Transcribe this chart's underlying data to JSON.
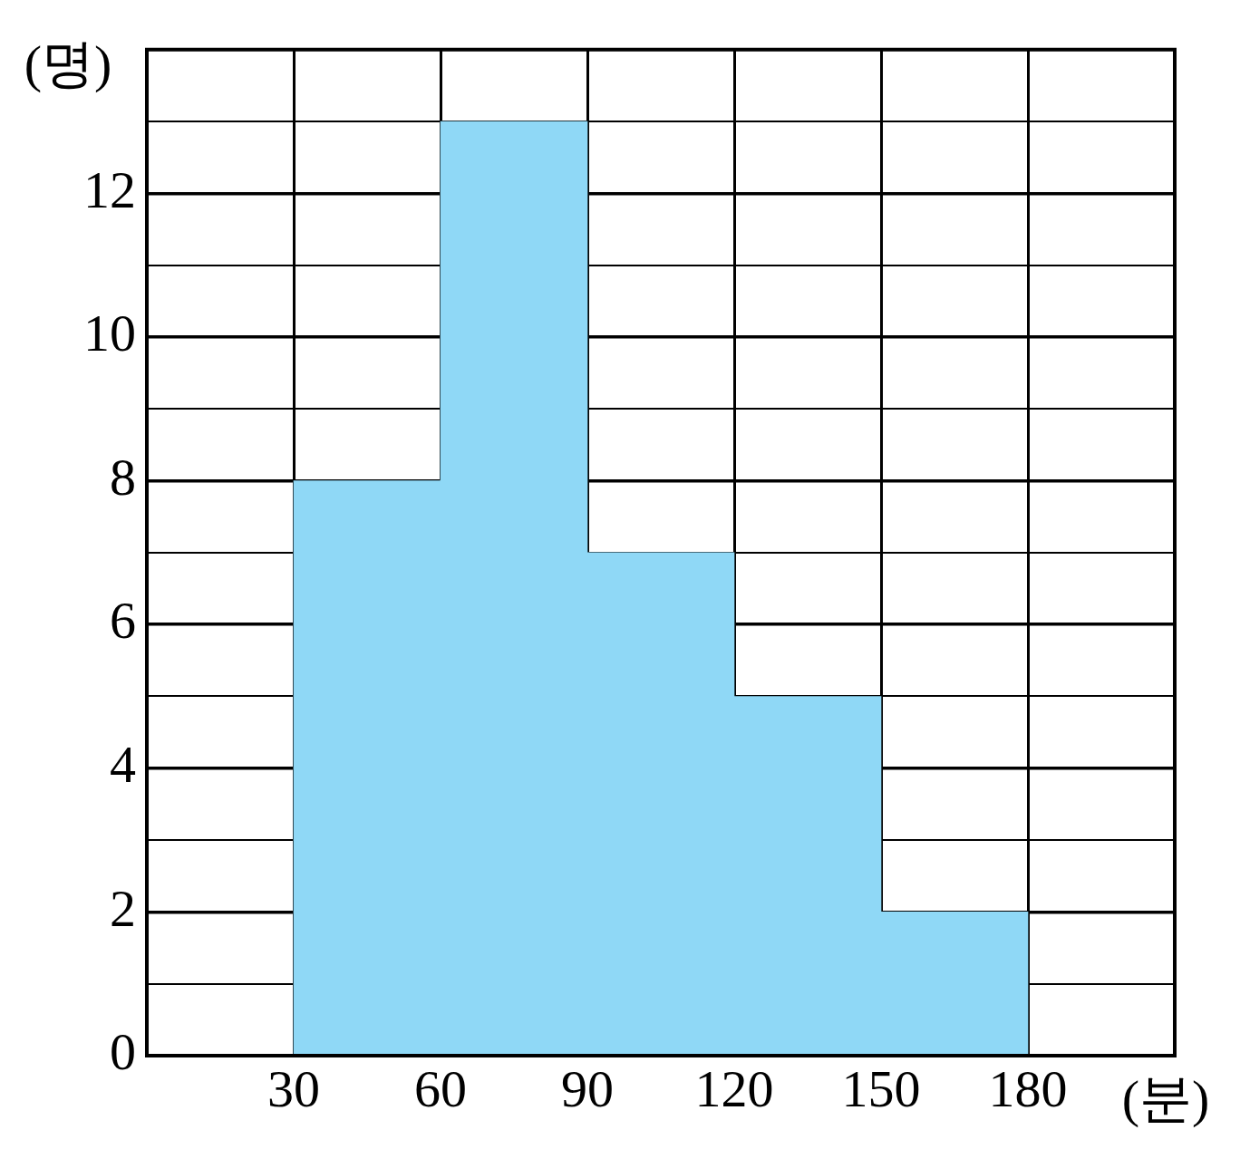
{
  "chart_data": {
    "type": "histogram",
    "xlabel": "(분)",
    "ylabel": "(명)",
    "bins": [
      30,
      60,
      90,
      120,
      150,
      180
    ],
    "values": [
      8,
      13,
      7,
      5,
      2
    ],
    "color": "#8fd8f6",
    "xlim": [
      0,
      210
    ],
    "xticks": [
      30,
      60,
      90,
      120,
      150,
      180
    ],
    "ylim": [
      0,
      14
    ],
    "yticks": [
      0,
      {
        "value": 1,
        "label": null
      },
      2,
      {
        "value": 3,
        "label": null
      },
      4,
      {
        "value": 5,
        "label": null
      },
      6,
      {
        "value": 7,
        "label": null
      },
      8,
      {
        "value": 9,
        "label": null
      },
      10,
      {
        "value": 11,
        "label": null
      },
      12,
      {
        "value": 13,
        "label": null
      }
    ],
    "grid": true
  }
}
